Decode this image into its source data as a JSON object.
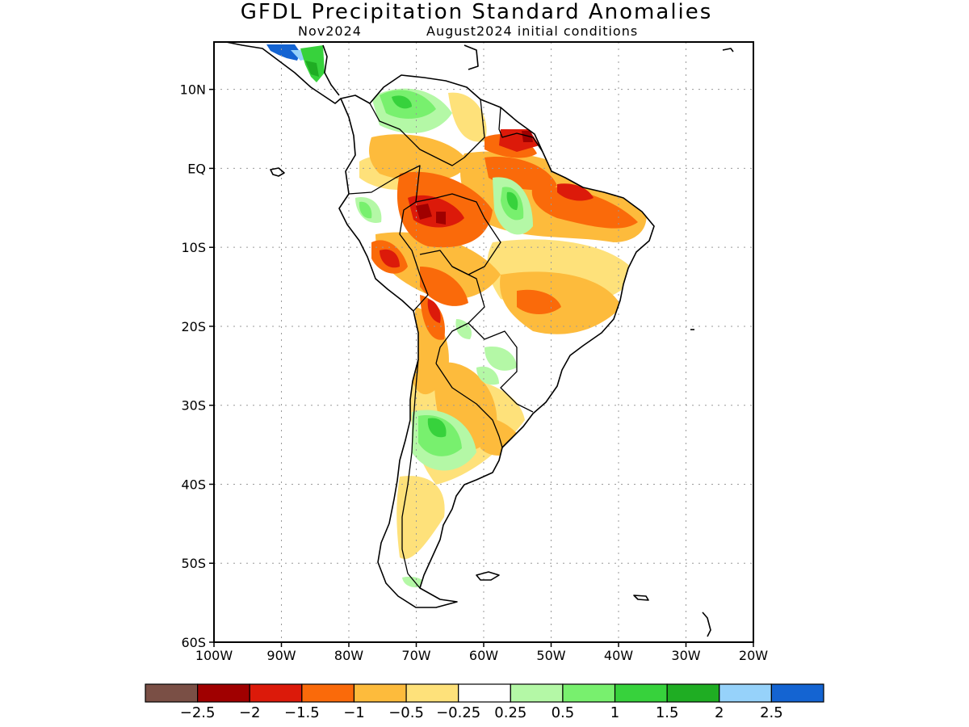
{
  "title": "GFDL Precipitation Standard Anomalies",
  "subtitle_left": "Nov2024",
  "subtitle_right": "August2024 initial conditions",
  "lat_ticks": [
    {
      "label": "10N",
      "lat": 10
    },
    {
      "label": "EQ",
      "lat": 0
    },
    {
      "label": "10S",
      "lat": -10
    },
    {
      "label": "20S",
      "lat": -20
    },
    {
      "label": "30S",
      "lat": -30
    },
    {
      "label": "40S",
      "lat": -40
    },
    {
      "label": "50S",
      "lat": -50
    },
    {
      "label": "60S",
      "lat": -60
    }
  ],
  "lon_ticks": [
    {
      "label": "100W",
      "lon": -100
    },
    {
      "label": "90W",
      "lon": -90
    },
    {
      "label": "80W",
      "lon": -80
    },
    {
      "label": "70W",
      "lon": -70
    },
    {
      "label": "60W",
      "lon": -60
    },
    {
      "label": "50W",
      "lon": -50
    },
    {
      "label": "40W",
      "lon": -40
    },
    {
      "label": "30W",
      "lon": -30
    },
    {
      "label": "20W",
      "lon": -20
    }
  ],
  "extent": {
    "lon": [
      -100,
      -20
    ],
    "lat": [
      -60,
      16
    ]
  },
  "colorbar": {
    "colors": [
      "#7a4f45",
      "#a00000",
      "#dc1a0a",
      "#fa6a0a",
      "#fdbb3c",
      "#fee17a",
      "#ffffff",
      "#b4f8a6",
      "#78f06e",
      "#37d23c",
      "#1fad23",
      "#96d2fa",
      "#1464d2"
    ],
    "labels": [
      "−2.5",
      "−2",
      "−1.5",
      "−1",
      "−0.5",
      "−0.25",
      "0.25",
      "0.5",
      "1",
      "1.5",
      "2",
      "2.5"
    ]
  },
  "style": {
    "coast_color": "#000000",
    "grid_color": "#9a9a9a"
  }
}
